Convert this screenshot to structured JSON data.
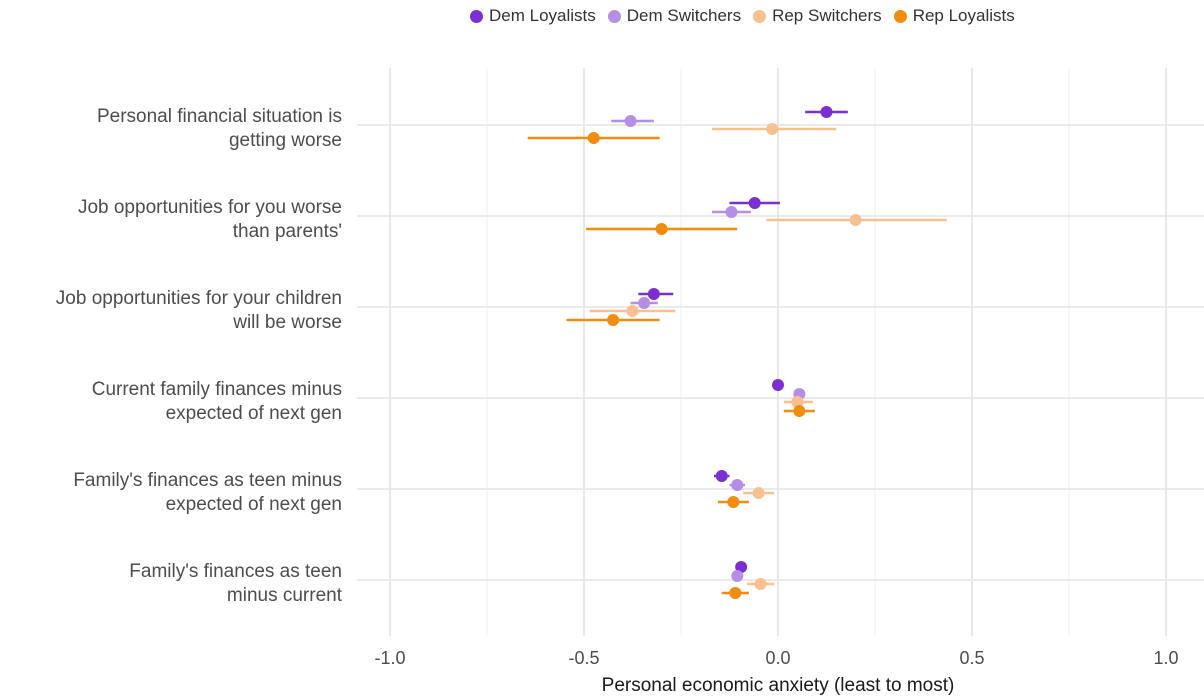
{
  "chart_data": {
    "type": "dot-and-whisker",
    "xlabel": "Personal economic anxiety (least to most)",
    "xlim": [
      -1.0,
      1.0
    ],
    "xticks": [
      -1.0,
      -0.5,
      0.0,
      0.5,
      1.0
    ],
    "xtick_labels": [
      "-1.0",
      "-0.5",
      "0.0",
      "0.5",
      "1.0"
    ],
    "grid": true,
    "legend_position": "top",
    "categories": [
      [
        "Personal financial situation is",
        "getting worse"
      ],
      [
        "Job opportunities for you worse",
        "than parents'"
      ],
      [
        "Job opportunities for your children",
        "will be worse"
      ],
      [
        "Current family finances minus",
        "expected of next gen"
      ],
      [
        "Family's finances as teen minus",
        "expected of next gen"
      ],
      [
        "Family's finances as teen",
        "minus current"
      ]
    ],
    "series": [
      {
        "name": "Dem Loyalists",
        "color": "#7b2fd1",
        "points": [
          {
            "estimate": 0.125,
            "lower": 0.07,
            "upper": 0.18
          },
          {
            "estimate": -0.06,
            "lower": -0.125,
            "upper": 0.005
          },
          {
            "estimate": -0.32,
            "lower": -0.36,
            "upper": -0.27
          },
          {
            "estimate": 0.0,
            "lower": -0.01,
            "upper": 0.01
          },
          {
            "estimate": -0.145,
            "lower": -0.165,
            "upper": -0.125
          },
          {
            "estimate": -0.095,
            "lower": -0.105,
            "upper": -0.085
          }
        ]
      },
      {
        "name": "Dem Switchers",
        "color": "#b68ee6",
        "points": [
          {
            "estimate": -0.38,
            "lower": -0.43,
            "upper": -0.32
          },
          {
            "estimate": -0.12,
            "lower": -0.17,
            "upper": -0.07
          },
          {
            "estimate": -0.345,
            "lower": -0.38,
            "upper": -0.31
          },
          {
            "estimate": 0.055,
            "lower": 0.045,
            "upper": 0.065
          },
          {
            "estimate": -0.105,
            "lower": -0.125,
            "upper": -0.085
          },
          {
            "estimate": -0.105,
            "lower": -0.12,
            "upper": -0.09
          }
        ]
      },
      {
        "name": "Rep Switchers",
        "color": "#f9c08f",
        "points": [
          {
            "estimate": -0.015,
            "lower": -0.17,
            "upper": 0.15
          },
          {
            "estimate": 0.2,
            "lower": -0.03,
            "upper": 0.435
          },
          {
            "estimate": -0.375,
            "lower": -0.485,
            "upper": -0.265
          },
          {
            "estimate": 0.05,
            "lower": 0.015,
            "upper": 0.09
          },
          {
            "estimate": -0.05,
            "lower": -0.09,
            "upper": -0.01
          },
          {
            "estimate": -0.045,
            "lower": -0.08,
            "upper": -0.01
          }
        ]
      },
      {
        "name": "Rep Loyalists",
        "color": "#f28c0f",
        "points": [
          {
            "estimate": -0.475,
            "lower": -0.645,
            "upper": -0.305
          },
          {
            "estimate": -0.3,
            "lower": -0.495,
            "upper": -0.105
          },
          {
            "estimate": -0.425,
            "lower": -0.545,
            "upper": -0.305
          },
          {
            "estimate": 0.055,
            "lower": 0.015,
            "upper": 0.095
          },
          {
            "estimate": -0.115,
            "lower": -0.155,
            "upper": -0.075
          },
          {
            "estimate": -0.11,
            "lower": -0.145,
            "upper": -0.075
          }
        ]
      }
    ]
  }
}
